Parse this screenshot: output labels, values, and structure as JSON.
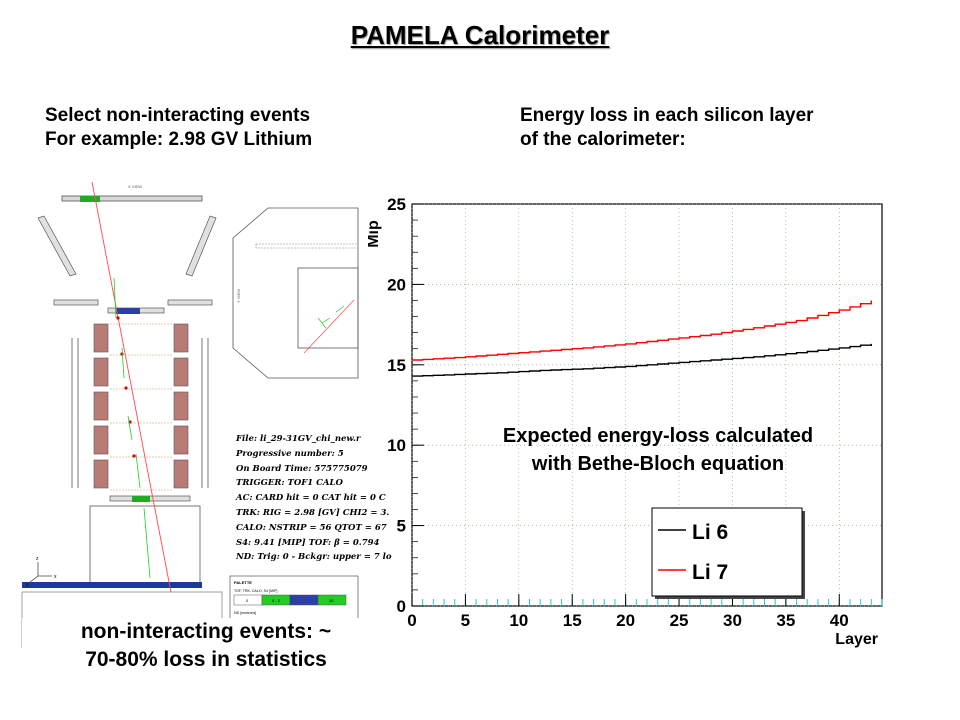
{
  "title": "PAMELA Calorimeter",
  "left_caption": {
    "line1": "Select non-interacting events",
    "line2": "For example: 2.98 GV Lithium"
  },
  "right_caption": {
    "line1": "Energy loss in each silicon layer",
    "line2": "of the calorimeter:"
  },
  "bottom_caption": {
    "line1": "non-interacting events: ~",
    "line2": "70-80% loss in statistics"
  },
  "event_display": {
    "top_label": "X VIEW",
    "side_label": "Y VIEW",
    "info_lines": [
      "File: li_29-31GV_chi_new.r",
      "Progressive number: 5",
      "On Board Time: 575775079",
      "TRIGGER: TOF1 CALO",
      "AC: CARD hit = 0  CAT hit = 0  C",
      "TRK:  RIG = 2.98 [GV] CHI2 = 3.",
      "CALO: NSTRIP = 56  QTOT = 67",
      "S4: 9.41 [MIP]   TOF: β = 0.794",
      "ND: Trig: 0 - Bckgr: upper = 7 lo"
    ],
    "palette": {
      "title": "PALETTE",
      "header": "TOF, TRK, CALO, S4 [MIP]",
      "cells": [
        "0",
        "0 - 2",
        "",
        "10"
      ],
      "nd_label": "ND [neutrons]"
    },
    "axes_labels": {
      "z": "z",
      "y": "y",
      "x": "x"
    }
  },
  "chart_data": {
    "type": "line",
    "annotation": {
      "line1": "Expected energy-loss calculated",
      "line2": "with Bethe-Bloch equation"
    },
    "xlabel": "Layer",
    "ylabel": "Mip",
    "xlim": [
      0,
      44
    ],
    "ylim": [
      0,
      25
    ],
    "xticks": [
      0,
      5,
      10,
      15,
      20,
      25,
      30,
      35,
      40
    ],
    "yticks": [
      0,
      5,
      10,
      15,
      20,
      25
    ],
    "grid": true,
    "legend_position": "bottom-right",
    "series": [
      {
        "name": "Li 6",
        "color": "#000000",
        "x": [
          0,
          4,
          8,
          12,
          16,
          20,
          24,
          28,
          32,
          36,
          40,
          43
        ],
        "values": [
          14.3,
          14.4,
          14.5,
          14.65,
          14.75,
          14.9,
          15.1,
          15.3,
          15.5,
          15.75,
          16.05,
          16.3
        ]
      },
      {
        "name": "Li 7",
        "color": "#ff0000",
        "x": [
          0,
          4,
          8,
          12,
          16,
          20,
          24,
          28,
          32,
          36,
          40,
          43
        ],
        "values": [
          15.3,
          15.45,
          15.65,
          15.85,
          16.05,
          16.3,
          16.6,
          16.9,
          17.3,
          17.75,
          18.4,
          19.0
        ]
      }
    ]
  }
}
